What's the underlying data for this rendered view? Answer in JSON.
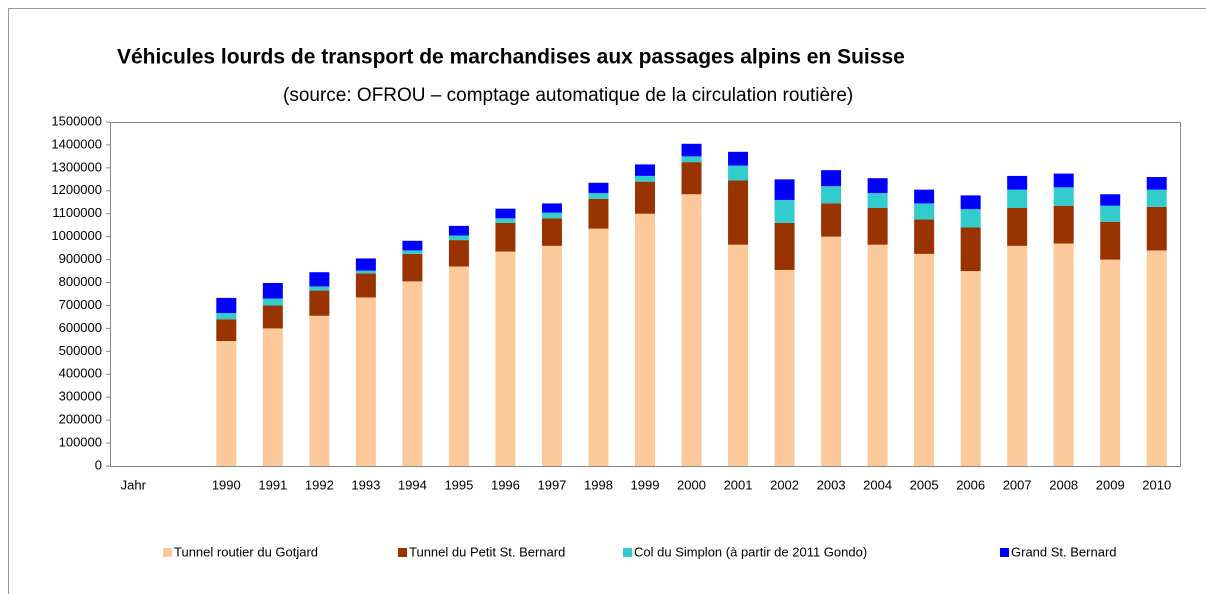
{
  "chart_data": {
    "type": "bar",
    "stacked": true,
    "title": "Véhicules lourds de transport de marchandises aux passages alpins en Suisse",
    "subtitle": "(source: OFROU – comptage automatique de la circulation routière)",
    "categories": [
      "Jahr",
      null,
      "1990",
      "1991",
      "1992",
      "1993",
      "1994",
      "1995",
      "1996",
      "1997",
      "1998",
      "1999",
      "2000",
      "2001",
      "2002",
      "2003",
      "2004",
      "2005",
      "2006",
      "2007",
      "2008",
      "2009",
      "2010"
    ],
    "series": [
      {
        "name": "Tunnel routier du Gotjard",
        "color": "#fcc99b",
        "values": [
          null,
          null,
          545000,
          600000,
          655000,
          735000,
          805000,
          870000,
          935000,
          960000,
          1035000,
          1100000,
          1185000,
          965000,
          855000,
          1000000,
          965000,
          925000,
          850000,
          960000,
          970000,
          900000,
          940000
        ]
      },
      {
        "name": "Tunnel du Petit St. Bernard",
        "color": "#993300",
        "values": [
          null,
          null,
          95000,
          100000,
          110000,
          105000,
          120000,
          115000,
          125000,
          120000,
          130000,
          140000,
          140000,
          280000,
          205000,
          145000,
          160000,
          150000,
          190000,
          165000,
          165000,
          165000,
          190000
        ]
      },
      {
        "name": "Col du Simplon (à partir de 2011 Gondo)",
        "color": "#33cccc",
        "values": [
          null,
          null,
          27000,
          30000,
          18000,
          12000,
          15000,
          20000,
          20000,
          25000,
          25000,
          25000,
          25000,
          65000,
          100000,
          75000,
          65000,
          70000,
          80000,
          80000,
          80000,
          70000,
          75000
        ]
      },
      {
        "name": "Grand St. Bernard",
        "color": "#0000ff",
        "values": [
          null,
          null,
          66000,
          68000,
          62000,
          53000,
          42000,
          42000,
          42000,
          40000,
          45000,
          50000,
          55000,
          60000,
          90000,
          70000,
          65000,
          60000,
          60000,
          60000,
          60000,
          50000,
          55000
        ]
      }
    ],
    "ylim": [
      0,
      1500000
    ],
    "yticks": [
      0,
      100000,
      200000,
      300000,
      400000,
      500000,
      600000,
      700000,
      800000,
      900000,
      1000000,
      1100000,
      1200000,
      1300000,
      1400000,
      1500000
    ],
    "grid": false,
    "legend": "bottom"
  }
}
